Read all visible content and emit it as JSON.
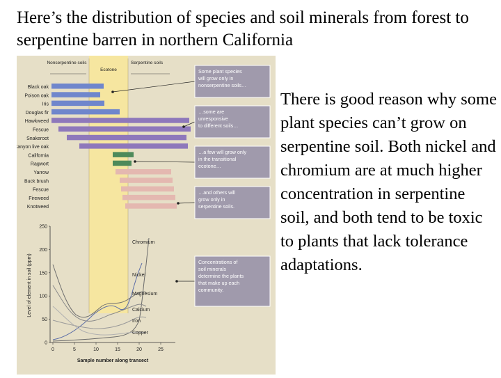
{
  "slide": {
    "title": "Here’s the distribution of species and soil minerals from forest to serpentine barren in northern California",
    "body": "There is good reason why some plant species can’t grow on serpentine soil. Both nickel and chromium are at much higher concentration in serpentine soil, and both tend to be toxic to plants that lack tolerance adaptations."
  },
  "figure": {
    "zones": [
      "Nonserpentine soils",
      "Ecotone",
      "Serpentine soils"
    ],
    "species": [
      {
        "name": "Black oak",
        "group": 1
      },
      {
        "name": "Poison oak",
        "group": 1
      },
      {
        "name": "Iris",
        "group": 1
      },
      {
        "name": "Douglas fir",
        "group": 1
      },
      {
        "name": "Hawkweed",
        "group": 2
      },
      {
        "name": "Fescue",
        "group": 2
      },
      {
        "name": "Snakeroot",
        "group": 2
      },
      {
        "name": "Canyon live oak",
        "group": 2
      },
      {
        "name": "California",
        "group": 3
      },
      {
        "name": "Ragwort",
        "group": 3
      },
      {
        "name": "Yarrow",
        "group": 4
      },
      {
        "name": "Buck brush",
        "group": 4
      },
      {
        "name": "Fescue",
        "group": 4
      },
      {
        "name": "Fireweed",
        "group": 4
      },
      {
        "name": "Knotweed",
        "group": 4
      }
    ],
    "callouts": [
      "Some plant species will grow only in nonserpentine soils…",
      "…some are unresponsive to different soils…",
      "…a few will grow only in the transitional ecotone…",
      "…and others will grow only in serpentine soils.",
      "Concentrations of soil minerals determine the plants that make up each community."
    ],
    "minerals": [
      "Chromium",
      "Nickel",
      "Magnesium",
      "Calcium",
      "Iron",
      "Copper"
    ],
    "y_axis_label": "Level of element in soil (ppm)",
    "x_axis_label": "Sample number along transect",
    "y_ticks": [
      "250",
      "200",
      "150",
      "100",
      "50",
      "0"
    ],
    "x_ticks": [
      "0",
      "5",
      "10",
      "15",
      "20",
      "25"
    ],
    "colors": {
      "panel": "#e6dfc7",
      "ecotone": "#f6e6a0",
      "nonserpentine_bar": "#6f86cc",
      "unresponsive_bar": "#8e78bb",
      "ecotone_bar": "#4e8a5a",
      "serpentine_bar": "#e4b8b0",
      "callout_box": "#a09aac"
    }
  }
}
